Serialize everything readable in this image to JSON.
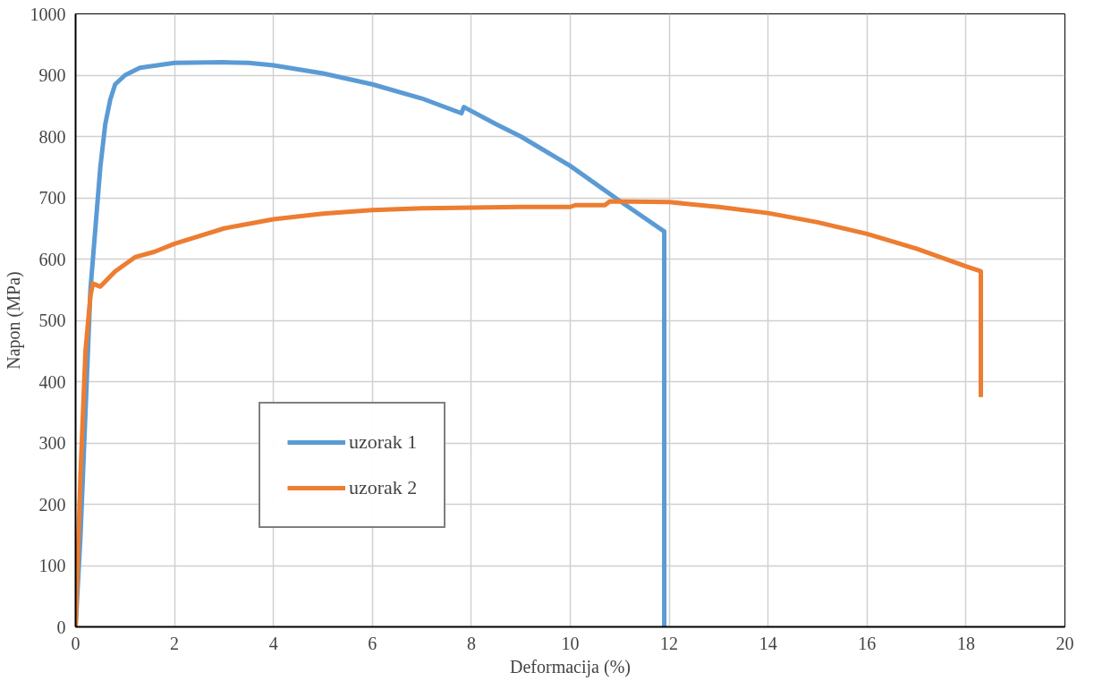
{
  "chart_data": {
    "type": "line",
    "xlabel": "Deformacija (%)",
    "ylabel": "Napon (MPa)",
    "xlim": [
      0,
      20
    ],
    "ylim": [
      0,
      1000
    ],
    "xticks": [
      0,
      2,
      4,
      6,
      8,
      10,
      12,
      14,
      16,
      18,
      20
    ],
    "yticks": [
      0,
      100,
      200,
      300,
      400,
      500,
      600,
      700,
      800,
      900,
      1000
    ],
    "grid": true,
    "legend": "bottom left",
    "marker": "none",
    "line_style": "solid",
    "series": [
      {
        "name": "uzorak 1",
        "color": "#5b9bd5",
        "x": [
          0,
          0.1,
          0.2,
          0.3,
          0.4,
          0.5,
          0.6,
          0.7,
          0.8,
          1.0,
          1.3,
          2,
          3,
          3.5,
          4,
          5,
          6,
          7,
          7.8,
          7.85,
          8.5,
          9,
          10,
          11,
          11.9,
          11.9
        ],
        "values": [
          0,
          150,
          350,
          550,
          650,
          750,
          820,
          860,
          885,
          900,
          912,
          920,
          921,
          920,
          916,
          903,
          885,
          862,
          838,
          848,
          820,
          800,
          752,
          695,
          645,
          0
        ]
      },
      {
        "name": "uzorak 2",
        "color": "#ed7d31",
        "x": [
          0,
          0.1,
          0.2,
          0.3,
          0.35,
          0.5,
          0.8,
          1.2,
          1.6,
          2,
          3,
          4,
          5,
          6,
          7,
          8,
          9,
          10,
          10.1,
          10.7,
          10.8,
          12,
          13,
          14,
          15,
          16,
          17,
          18,
          18.3,
          18.3
        ],
        "values": [
          0,
          250,
          450,
          540,
          560,
          555,
          580,
          603,
          612,
          625,
          650,
          665,
          674,
          680,
          683,
          684,
          685,
          685,
          688,
          688,
          694,
          693,
          685,
          675,
          660,
          641,
          617,
          588,
          580,
          375
        ]
      }
    ]
  }
}
